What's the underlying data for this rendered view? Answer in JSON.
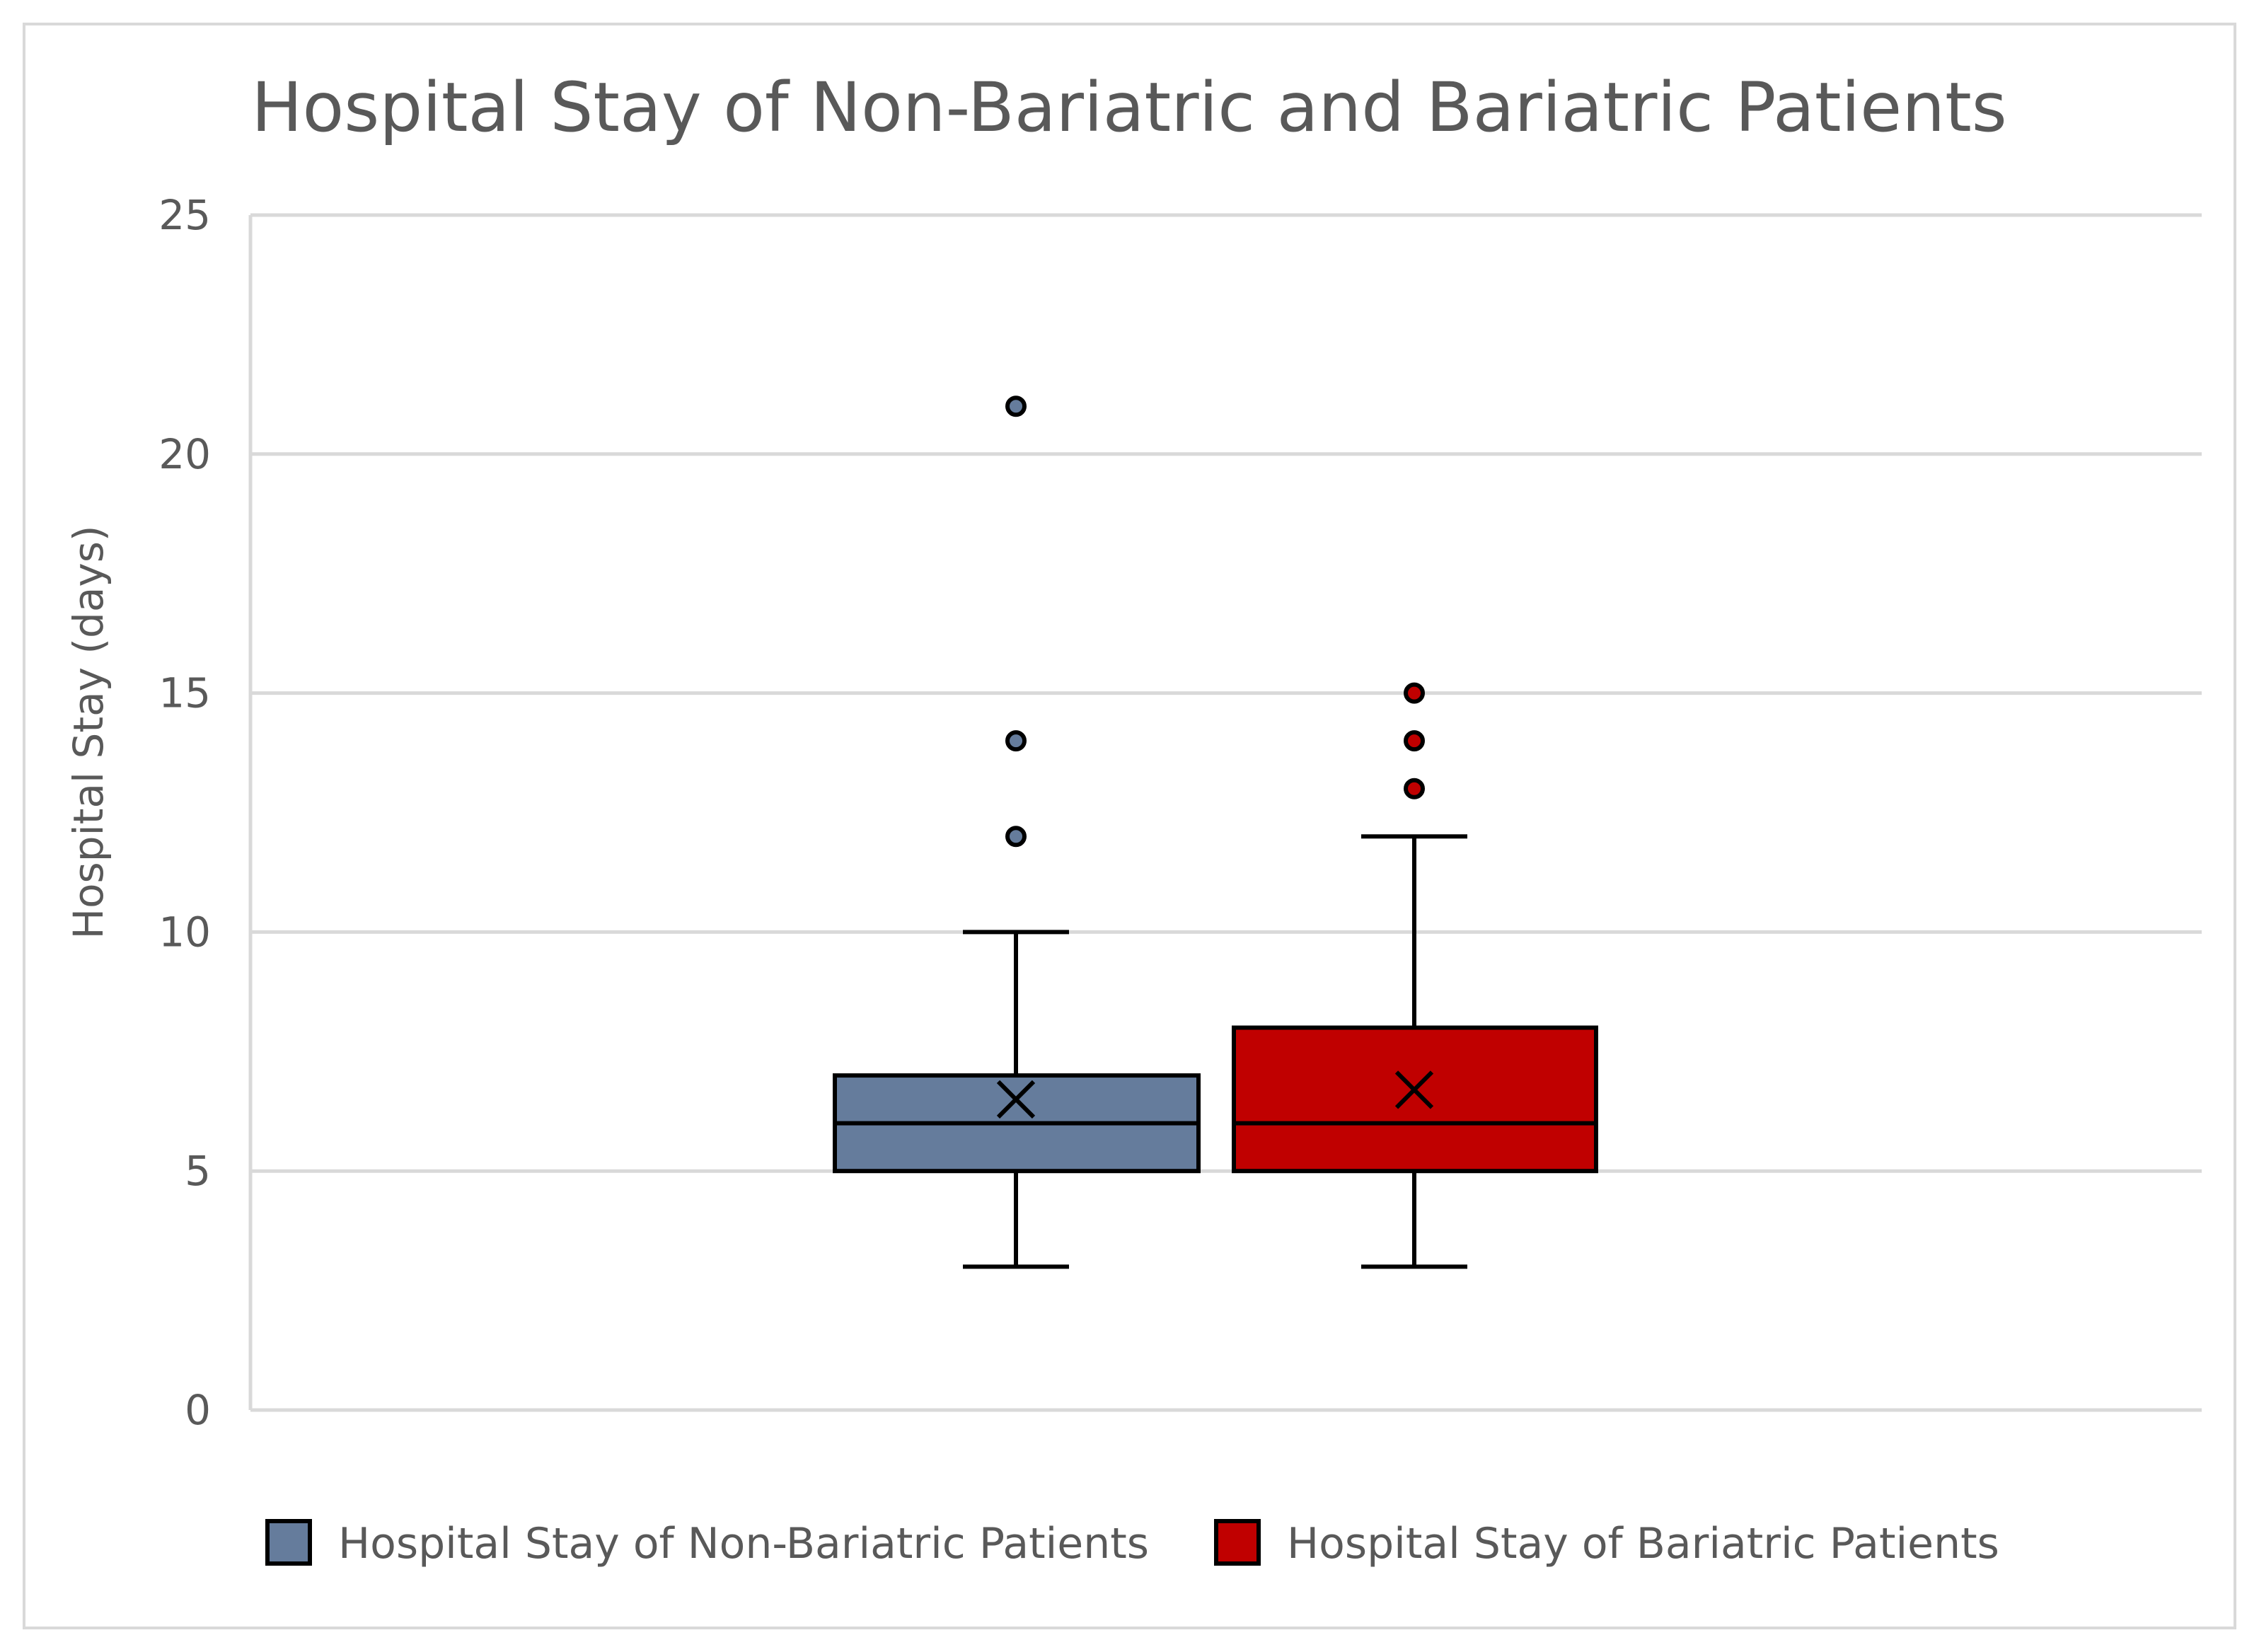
{
  "chart_data": {
    "type": "box",
    "title": "Hospital Stay of Non-Bariatric and Bariatric Patients",
    "xlabel": "",
    "ylabel": "Hospital Stay (days)",
    "ylim": [
      0,
      25
    ],
    "yticks": [
      0,
      5,
      10,
      15,
      20,
      25
    ],
    "grid": true,
    "legend_position": "bottom",
    "series": [
      {
        "name": "Hospital Stay of Non-Bariatric Patients",
        "color": "#657c9c",
        "min": 3,
        "q1": 5,
        "median": 6,
        "q3": 7,
        "max": 10,
        "mean": 6.5,
        "outliers": [
          12,
          14,
          21
        ]
      },
      {
        "name": "Hospital Stay of Bariatric Patients",
        "color": "#c00000",
        "min": 3,
        "q1": 5,
        "median": 6,
        "q3": 8,
        "max": 12,
        "mean": 6.7,
        "outliers": [
          13,
          14,
          15
        ]
      }
    ]
  }
}
